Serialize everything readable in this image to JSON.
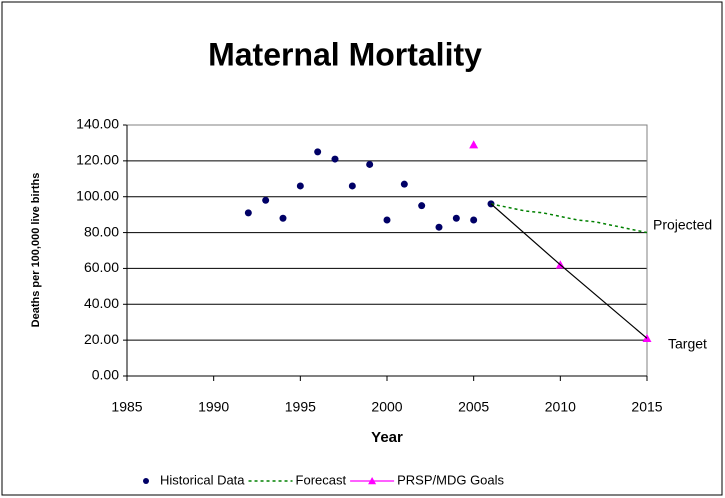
{
  "chart_data": {
    "type": "scatter",
    "title": "Maternal Mortality",
    "x_label": "Year",
    "y_label": "Deaths per 100,000 live births",
    "xlim": [
      1985,
      2015
    ],
    "xticks": [
      1985,
      1990,
      1995,
      2000,
      2005,
      2010,
      2015
    ],
    "ylim": [
      0,
      140
    ],
    "yticks": [
      {
        "value": 0,
        "label": "0.00"
      },
      {
        "value": 20,
        "label": "20.00"
      },
      {
        "value": 40,
        "label": "40.00"
      },
      {
        "value": 60,
        "label": "60.00"
      },
      {
        "value": 80,
        "label": "80.00"
      },
      {
        "value": 100,
        "label": "100.00"
      },
      {
        "value": 120,
        "label": "120.00"
      },
      {
        "value": 140,
        "label": "140.00"
      }
    ],
    "grid": true,
    "series": [
      {
        "name": "Historical  Data",
        "color": "#000066",
        "marker": "circle",
        "line": "none",
        "x": [
          1992,
          1993,
          1994,
          1995,
          1996,
          1997,
          1998,
          1999,
          2000,
          2001,
          2002,
          2003,
          2004,
          2005,
          2006
        ],
        "values": [
          91,
          98,
          88,
          106,
          125,
          121,
          106,
          118,
          87,
          107,
          95,
          83,
          88,
          87,
          96
        ]
      },
      {
        "name": "Forecast",
        "color": "#008000",
        "marker": "none",
        "line": "dotted",
        "x": [
          2006,
          2007,
          2008,
          2009,
          2010,
          2011,
          2012,
          2013,
          2014,
          2015
        ],
        "values": [
          96,
          94,
          92,
          91,
          89,
          87,
          86,
          84,
          82,
          80
        ]
      },
      {
        "name": "PRSP/MDG Goals",
        "color": "#ff00ff",
        "marker": "triangle",
        "line": "none",
        "x": [
          2005,
          2010,
          2015
        ],
        "values": [
          129,
          62,
          21
        ]
      },
      {
        "color": "#000000",
        "marker": "none",
        "line": "solid",
        "x": [
          2006,
          2010,
          2015
        ],
        "values": [
          96,
          62,
          21
        ]
      }
    ],
    "annotations": [
      "Projected",
      "Target"
    ],
    "legend": "bottom"
  }
}
